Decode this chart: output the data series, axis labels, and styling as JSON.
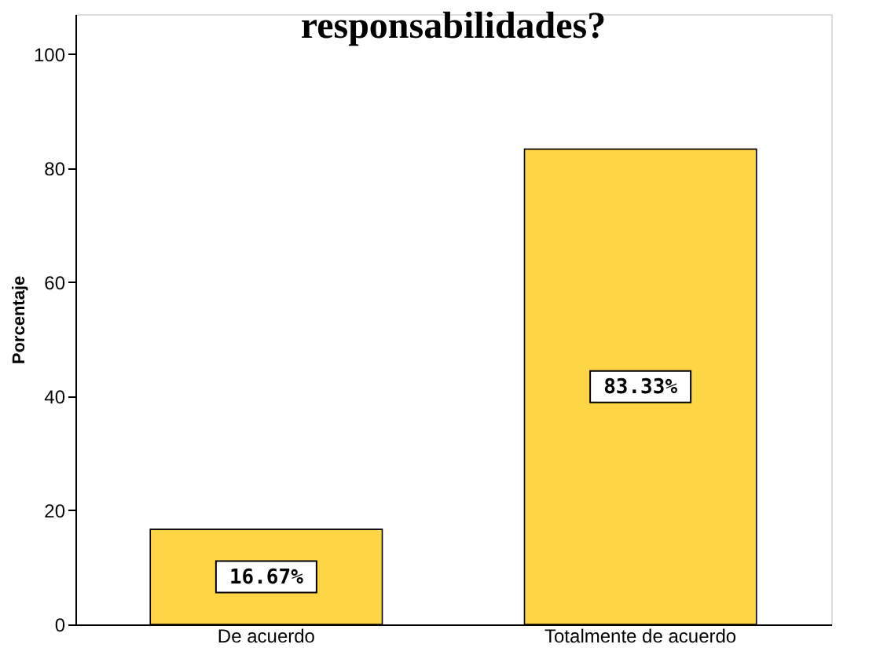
{
  "chart_data": {
    "type": "bar",
    "title": "responsabilidades?",
    "ylabel": "Porcentaje",
    "categories": [
      "De acuerdo",
      "Totalmente de acuerdo"
    ],
    "values": [
      16.67,
      83.33
    ],
    "value_labels": [
      "16.67%",
      "83.33%"
    ],
    "color": "#fdd545",
    "ylim": [
      0,
      107
    ],
    "yticks": [
      0,
      20,
      40,
      60,
      80,
      100
    ],
    "grid": false
  }
}
